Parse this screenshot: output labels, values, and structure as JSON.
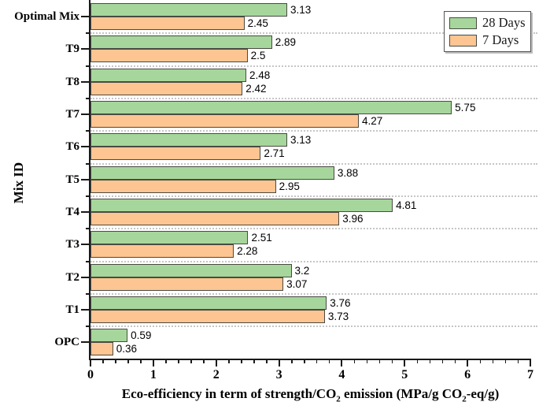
{
  "chart_data": {
    "type": "bar",
    "orientation": "horizontal",
    "title": "",
    "xlabel": "Eco-efficiency in term of strength/CO2 emission (MPa/g CO2-eq/g)",
    "xlabel_parts": {
      "p1": "Eco-efficiency in term of strength/CO",
      "s1": "2",
      "p2": " emission (MPa/g CO",
      "s2": "2",
      "p3": "-eq/g)"
    },
    "ylabel": "Mix ID",
    "categories": [
      "Optimal Mix",
      "T9",
      "T8",
      "T7",
      "T6",
      "T5",
      "T4",
      "T3",
      "T2",
      "T1",
      "OPC"
    ],
    "series": [
      {
        "name": "28 Days",
        "color": "#a6d69b",
        "values": [
          3.13,
          2.89,
          2.48,
          5.75,
          3.13,
          3.88,
          4.81,
          2.51,
          3.2,
          3.76,
          0.59
        ]
      },
      {
        "name": "7 Days",
        "color": "#fcc592",
        "values": [
          2.45,
          2.5,
          2.42,
          4.27,
          2.71,
          2.95,
          3.96,
          2.28,
          3.07,
          3.73,
          0.36
        ]
      }
    ],
    "xlim": [
      0,
      7
    ],
    "x_major_ticks": [
      0,
      1,
      2,
      3,
      4,
      5,
      6,
      7
    ],
    "x_minor_step": 0.2,
    "grid": "horizontal dotted lines at category boundaries",
    "legend_position": "top-right"
  },
  "styles": {
    "bar_border_color": "#4a4a42",
    "axis_color": "#1a1a1a",
    "grid_color": "#c6c6c6",
    "text_color": "#000000",
    "legend_border_color": "#545454",
    "background": "#ffffff"
  }
}
